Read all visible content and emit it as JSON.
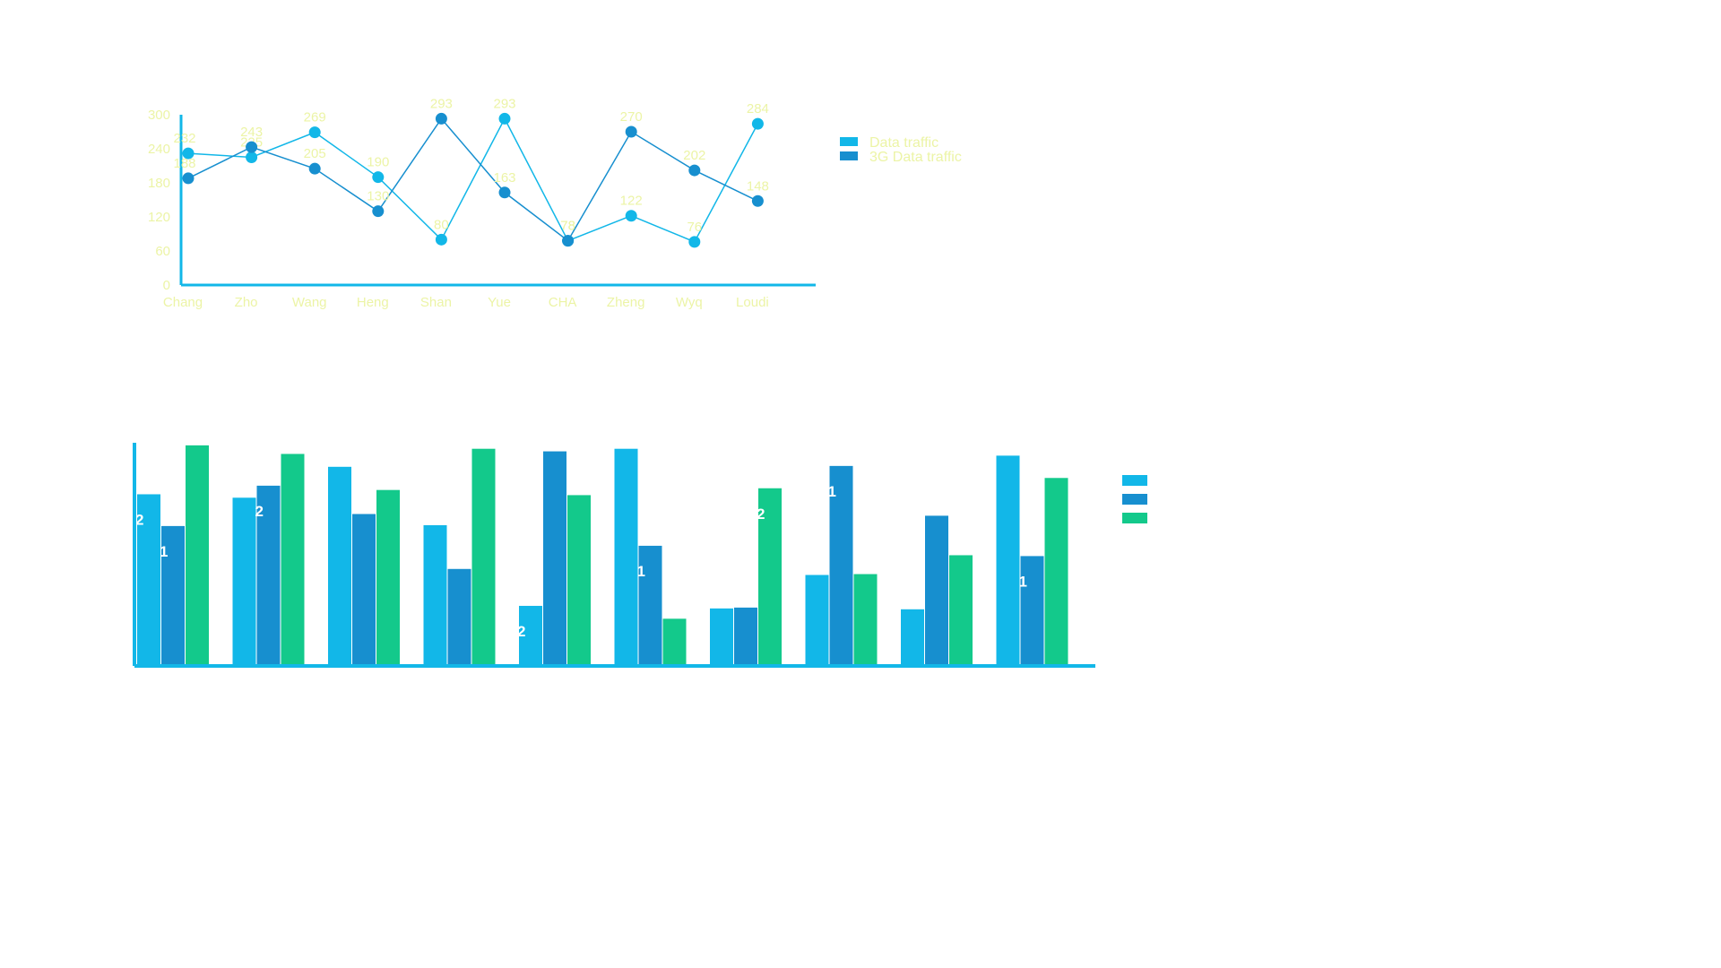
{
  "colors": {
    "series1": "#12b7e8",
    "series2": "#178fcf",
    "series3": "#13c98b",
    "axis": "#12b7e8",
    "label": "#ecf4a6",
    "bar_label": "#ffffff"
  },
  "chart_data": [
    {
      "type": "line",
      "categories": [
        "Chang",
        "Zho",
        "Wang",
        "Heng",
        "Shan",
        "Yue",
        "CHA",
        "Zheng",
        "Wyq",
        "Loudi"
      ],
      "ylim": [
        0,
        300
      ],
      "yticks": [
        "0",
        "60",
        "120",
        "180",
        "240",
        "300"
      ],
      "series": [
        {
          "name": "Data traffic",
          "values": [
            232,
            225,
            269,
            190,
            80,
            293,
            78,
            122,
            76,
            284
          ]
        },
        {
          "name": "3G Data traffic",
          "values": [
            188,
            243,
            205,
            130,
            293,
            163,
            78,
            270,
            202,
            148
          ]
        }
      ],
      "legend": "right",
      "grid": false
    },
    {
      "type": "bar",
      "categories": [
        "",
        "",
        "",
        "",
        "",
        "",
        "",
        "",
        "",
        ""
      ],
      "ylim": [
        0,
        260
      ],
      "series": [
        {
          "name": "",
          "values": [
            200,
            196,
            232,
            164,
            70,
            253,
            67,
            106,
            66,
            245
          ]
        },
        {
          "name": "",
          "values": [
            163,
            210,
            177,
            113,
            250,
            140,
            68,
            233,
            175,
            128
          ]
        },
        {
          "name": "",
          "values": [
            257,
            247,
            205,
            253,
            199,
            55,
            207,
            107,
            129,
            219
          ]
        }
      ],
      "value_labels": [
        "2",
        "1",
        "",
        "",
        "2",
        "",
        "",
        "",
        "",
        "",
        "",
        "",
        "2",
        "",
        "",
        "",
        "1",
        "",
        "",
        "",
        "2",
        "",
        "1",
        "",
        "",
        "",
        "",
        "",
        "1",
        "",
        "",
        "1",
        "",
        "",
        "1",
        ""
      ],
      "legend": "right",
      "grid": false
    }
  ]
}
